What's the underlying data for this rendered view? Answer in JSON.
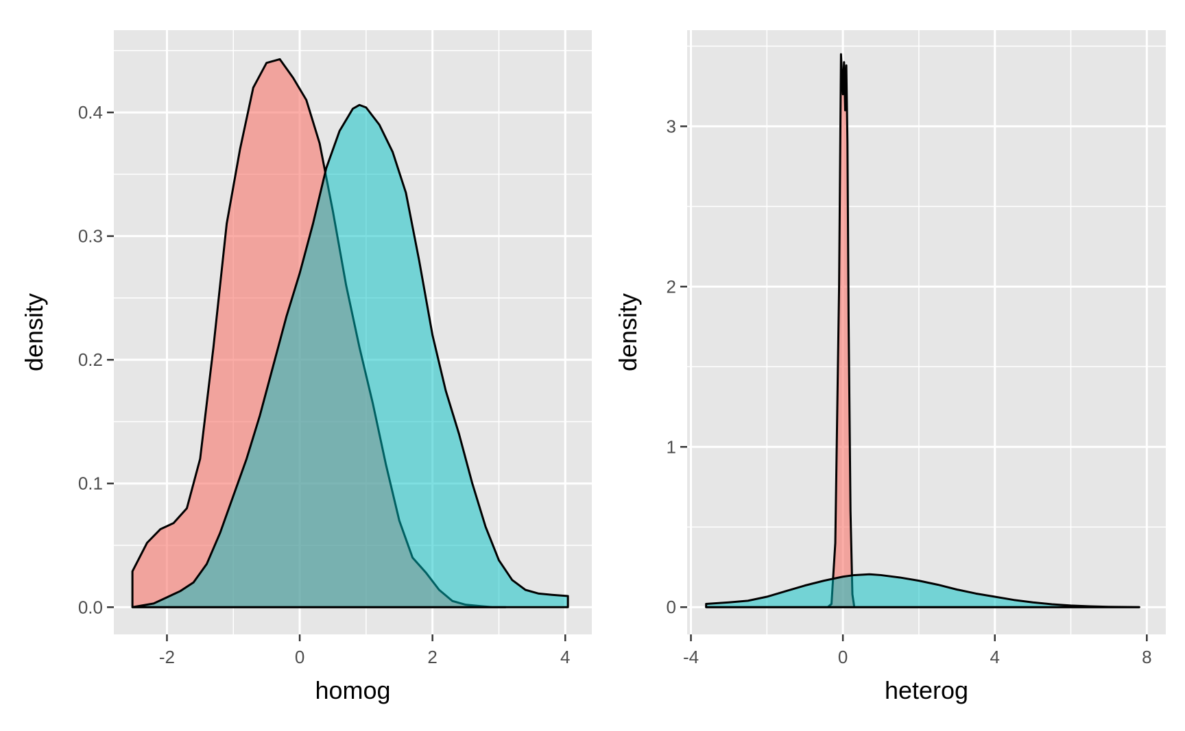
{
  "chart_data": [
    {
      "type": "area",
      "chart_kind": "density",
      "title": "",
      "xlabel": "homog",
      "ylabel": "density",
      "xlim": [
        -2.8,
        4.4
      ],
      "ylim": [
        -0.022,
        0.4665
      ],
      "x_ticks": [
        -2,
        0,
        2,
        4
      ],
      "x_tick_labels": [
        "-2",
        "0",
        "2",
        "4"
      ],
      "y_ticks": [
        0.0,
        0.1,
        0.2,
        0.3,
        0.4
      ],
      "y_tick_labels": [
        "0.0",
        "0.1",
        "0.2",
        "0.3",
        "0.4"
      ],
      "grid": true,
      "legend": "none",
      "series": [
        {
          "color": "#F8766D",
          "alpha": 0.6,
          "x": [
            -2.52,
            -2.3,
            -2.1,
            -1.9,
            -1.7,
            -1.5,
            -1.3,
            -1.1,
            -0.9,
            -0.7,
            -0.5,
            -0.3,
            -0.1,
            0.1,
            0.3,
            0.5,
            0.7,
            0.9,
            1.1,
            1.3,
            1.5,
            1.7,
            1.9,
            2.1,
            2.3,
            2.5,
            2.7,
            2.9,
            3.1
          ],
          "y": [
            0.029,
            0.052,
            0.063,
            0.068,
            0.08,
            0.12,
            0.21,
            0.31,
            0.37,
            0.42,
            0.44,
            0.443,
            0.428,
            0.41,
            0.375,
            0.32,
            0.26,
            0.21,
            0.165,
            0.115,
            0.07,
            0.04,
            0.028,
            0.014,
            0.005,
            0.002,
            0.001,
            0.0,
            0.0
          ]
        },
        {
          "color": "#00BFC4",
          "alpha": 0.5,
          "x": [
            -2.52,
            -2.2,
            -2.0,
            -1.8,
            -1.6,
            -1.4,
            -1.2,
            -1.0,
            -0.8,
            -0.6,
            -0.4,
            -0.2,
            0.0,
            0.2,
            0.4,
            0.6,
            0.8,
            0.9,
            1.0,
            1.2,
            1.4,
            1.6,
            1.8,
            2.0,
            2.2,
            2.4,
            2.6,
            2.8,
            3.0,
            3.2,
            3.4,
            3.6,
            3.8,
            4.04
          ],
          "y": [
            0.0,
            0.003,
            0.008,
            0.013,
            0.02,
            0.035,
            0.06,
            0.09,
            0.12,
            0.155,
            0.195,
            0.235,
            0.27,
            0.31,
            0.355,
            0.385,
            0.403,
            0.406,
            0.404,
            0.39,
            0.368,
            0.335,
            0.28,
            0.22,
            0.175,
            0.14,
            0.1,
            0.065,
            0.038,
            0.022,
            0.014,
            0.011,
            0.01,
            0.009
          ]
        }
      ]
    },
    {
      "type": "area",
      "chart_kind": "density",
      "title": "",
      "xlabel": "heterog",
      "ylabel": "density",
      "xlim": [
        -4.1,
        8.5
      ],
      "ylim": [
        -0.17,
        3.6
      ],
      "x_ticks": [
        -4,
        0,
        4,
        8
      ],
      "x_tick_labels": [
        "-4",
        "0",
        "4",
        "8"
      ],
      "y_ticks": [
        0,
        1,
        2,
        3
      ],
      "y_tick_labels": [
        "0",
        "1",
        "2",
        "3"
      ],
      "grid": true,
      "legend": "none",
      "series": [
        {
          "color": "#F8766D",
          "alpha": 0.6,
          "x": [
            -3.6,
            -0.4,
            -0.3,
            -0.2,
            -0.1,
            -0.05,
            0.0,
            0.03,
            0.06,
            0.09,
            0.12,
            0.15,
            0.2,
            0.25,
            0.3,
            0.4,
            7.8
          ],
          "y": [
            0.0,
            0.0,
            0.02,
            0.4,
            2.0,
            3.45,
            3.2,
            3.4,
            3.1,
            3.38,
            2.9,
            1.8,
            0.6,
            0.08,
            0.0,
            0.0,
            0.0
          ]
        },
        {
          "color": "#00BFC4",
          "alpha": 0.5,
          "x": [
            -3.6,
            -3.0,
            -2.5,
            -2.0,
            -1.5,
            -1.0,
            -0.5,
            0.0,
            0.3,
            0.7,
            1.0,
            1.5,
            2.0,
            2.5,
            3.0,
            3.5,
            4.0,
            4.5,
            5.0,
            5.5,
            6.0,
            6.5,
            7.0,
            7.5,
            7.8
          ],
          "y": [
            0.02,
            0.03,
            0.04,
            0.065,
            0.1,
            0.135,
            0.165,
            0.19,
            0.2,
            0.205,
            0.2,
            0.185,
            0.165,
            0.14,
            0.11,
            0.085,
            0.065,
            0.045,
            0.03,
            0.018,
            0.01,
            0.005,
            0.002,
            0.001,
            0.0
          ]
        }
      ]
    }
  ]
}
